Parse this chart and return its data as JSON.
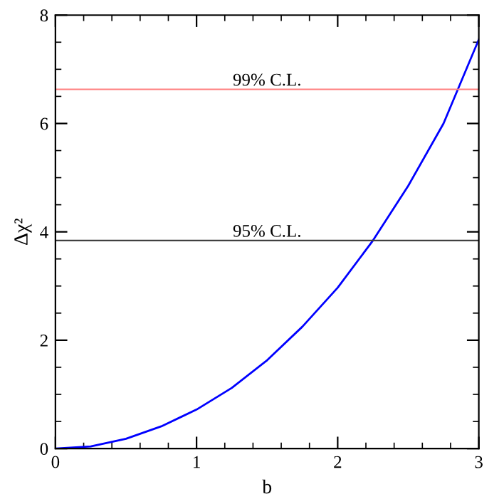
{
  "chart_data": {
    "type": "line",
    "xlabel": "b",
    "ylabel": "Δχ²",
    "x": [
      0,
      0.25,
      0.5,
      0.75,
      1,
      1.25,
      1.5,
      1.75,
      2,
      2.25,
      2.5,
      2.75,
      3
    ],
    "series": [
      {
        "color": "#0000ff",
        "values": [
          0,
          0.04,
          0.18,
          0.41,
          0.72,
          1.12,
          1.63,
          2.25,
          2.97,
          3.84,
          4.85,
          6.0,
          7.55
        ]
      }
    ],
    "xlim": [
      0,
      3
    ],
    "ylim": [
      0,
      8
    ],
    "xticks": [
      0,
      1,
      2,
      3
    ],
    "yticks": [
      0,
      2,
      4,
      6,
      8
    ],
    "ref_lines": [
      {
        "axis": "y",
        "value": 6.63,
        "label": "99% C.L.",
        "color": "#ff7f7f"
      },
      {
        "axis": "y",
        "value": 3.84,
        "label": "95% C.L.",
        "color": "#404040"
      }
    ],
    "grid": false,
    "legend": false,
    "marker": "none",
    "line_style": "solid"
  }
}
